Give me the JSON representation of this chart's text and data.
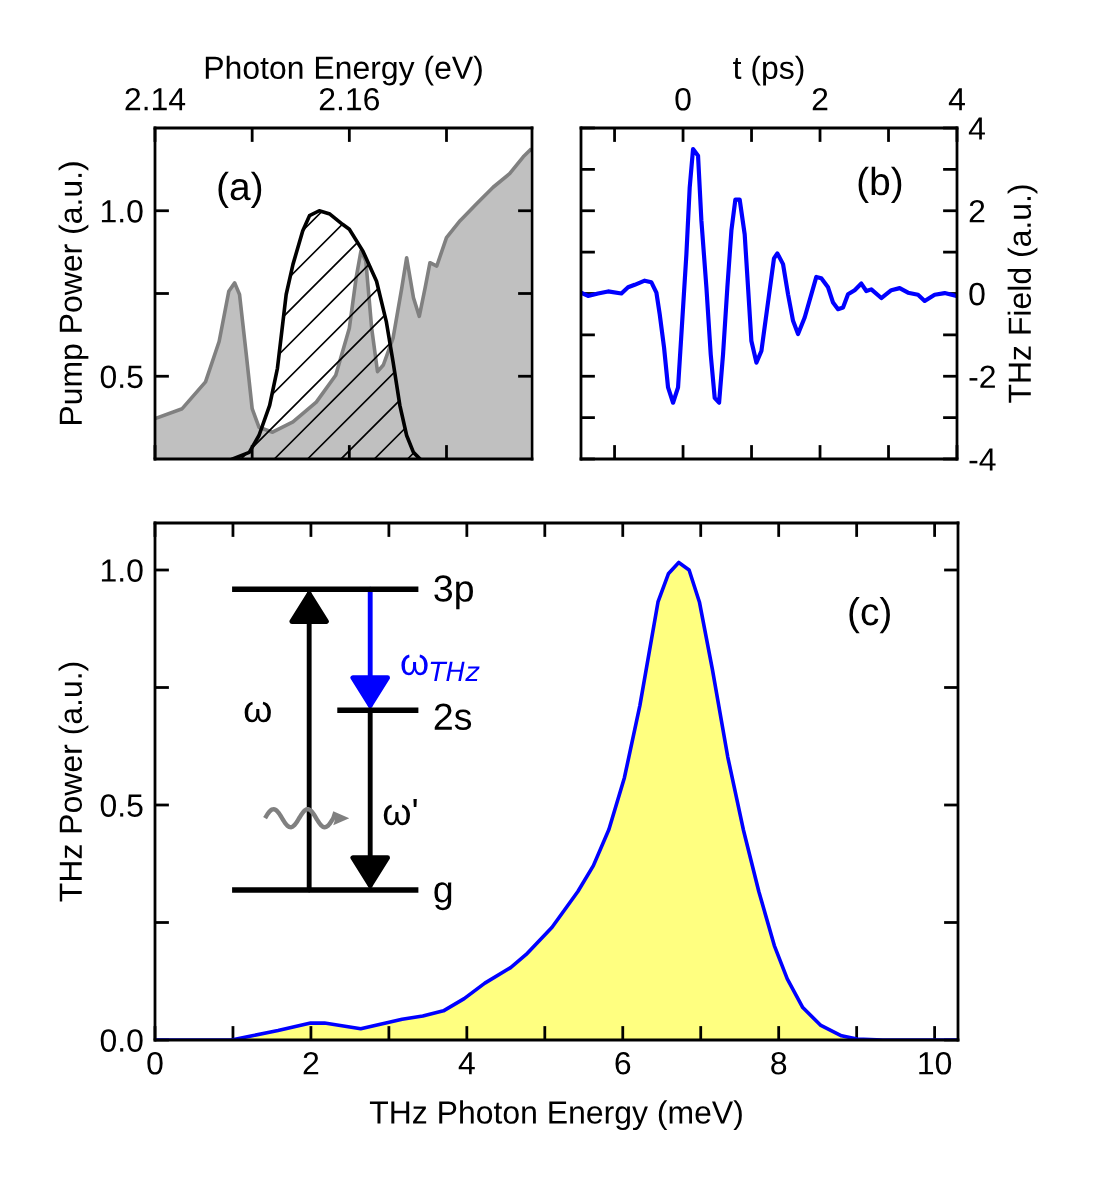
{
  "chart_data": [
    {
      "type": "area",
      "xlabel": "Photon Energy (eV)",
      "ylabel": "Pump Power (a.u.)",
      "annotations": [
        "(a)"
      ],
      "xlim": [
        2.14,
        2.1788
      ],
      "xticks": [
        2.14,
        {
          "value": 2.15,
          "label": null
        },
        2.16,
        {
          "value": 2.17,
          "label": null
        }
      ],
      "ylim": [
        0.25,
        1.25
      ],
      "yticks": [
        0.5,
        {
          "value": 0.75,
          "label": null
        },
        {
          "value": 1,
          "label": "1.0"
        }
      ],
      "colors": [
        "#808080",
        "#000000"
      ],
      "grid": false,
      "legend": false,
      "series": [
        {
          "color": "#c0c0c0",
          "x": [
            2.14,
            2.1428,
            2.1452,
            2.1466,
            2.1476,
            2.1482,
            2.1487,
            2.1494,
            2.15,
            2.1507,
            2.1521,
            2.1542,
            2.1566,
            2.1586,
            2.16,
            2.1607,
            2.1612,
            2.1617,
            2.1623,
            2.1629,
            2.1635,
            2.1645,
            2.1654,
            2.1659,
            2.1666,
            2.1672,
            2.1678,
            2.1683,
            2.169,
            2.17,
            2.1714,
            2.1731,
            2.1748,
            2.1765,
            2.1779,
            2.1786
          ],
          "values": [
            0.372,
            0.402,
            0.483,
            0.605,
            0.757,
            0.782,
            0.747,
            0.564,
            0.402,
            0.346,
            0.331,
            0.362,
            0.422,
            0.503,
            0.645,
            0.797,
            0.879,
            0.848,
            0.645,
            0.514,
            0.534,
            0.615,
            0.767,
            0.858,
            0.737,
            0.681,
            0.767,
            0.843,
            0.833,
            0.919,
            0.97,
            1.021,
            1.071,
            1.112,
            1.163,
            1.183
          ]
        },
        {
          "color": "#000000",
          "x": [
            2.148,
            2.1497,
            2.1507,
            2.1518,
            2.1526,
            2.1535,
            2.1542,
            2.1552,
            2.1559,
            2.1569,
            2.158,
            2.1593,
            2.16,
            2.1614,
            2.1628,
            2.1638,
            2.1645,
            2.1652,
            2.1659,
            2.1666,
            2.1672
          ],
          "values": [
            0.25,
            0.27,
            0.321,
            0.412,
            0.524,
            0.747,
            0.838,
            0.939,
            0.985,
            1.0,
            0.99,
            0.959,
            0.944,
            0.878,
            0.787,
            0.666,
            0.544,
            0.412,
            0.321,
            0.27,
            0.252
          ]
        }
      ]
    },
    {
      "type": "line",
      "xlabel": "t (ps)",
      "ylabel": "THz Field (a.u.)",
      "annotations": [
        "(b)"
      ],
      "xlim": [
        -1.49,
        4
      ],
      "xticks": [
        {
          "value": -1,
          "label": null
        },
        0,
        {
          "value": 1,
          "label": null
        },
        2,
        {
          "value": 3,
          "label": null
        },
        4
      ],
      "ylim": [
        -4,
        4
      ],
      "yticks": [
        -4,
        {
          "value": -3,
          "label": null
        },
        -2,
        {
          "value": -1,
          "label": null
        },
        0,
        {
          "value": 1,
          "label": null
        },
        2,
        {
          "value": 3,
          "label": null
        },
        4
      ],
      "grid": false,
      "legend": false,
      "series": [
        {
          "color": "#0000ff",
          "x": [
            -1.49,
            -1.387,
            -1.241,
            -1.095,
            -0.9,
            -0.803,
            -0.706,
            -0.56,
            -0.462,
            -0.389,
            -0.341,
            -0.277,
            -0.219,
            -0.146,
            -0.073,
            -0.024,
            0.049,
            0.097,
            0.146,
            0.219,
            0.268,
            0.341,
            0.404,
            0.462,
            0.526,
            0.584,
            0.647,
            0.706,
            0.764,
            0.827,
            0.9,
            0.949,
            0.998,
            1.071,
            1.144,
            1.217,
            1.29,
            1.328,
            1.377,
            1.46,
            1.533,
            1.606,
            1.679,
            1.776,
            1.873,
            1.946,
            2.019,
            2.117,
            2.19,
            2.263,
            2.336,
            2.409,
            2.506,
            2.603,
            2.676,
            2.749,
            2.895,
            3.041,
            3.163,
            3.285,
            3.431,
            3.528,
            3.674,
            3.82,
            3.995
          ],
          "values": [
            0.02,
            -0.06,
            0.0,
            0.05,
            0.0,
            0.15,
            0.21,
            0.31,
            0.27,
            0.02,
            -0.5,
            -1.31,
            -2.27,
            -2.64,
            -2.27,
            -0.98,
            0.95,
            2.56,
            3.49,
            3.33,
            1.76,
            0.15,
            -1.47,
            -2.52,
            -2.64,
            -1.47,
            0.15,
            1.52,
            2.27,
            2.27,
            1.43,
            0.15,
            -1.15,
            -1.67,
            -1.39,
            -0.5,
            0.39,
            0.85,
            0.97,
            0.71,
            -0.02,
            -0.66,
            -0.98,
            -0.58,
            -0.02,
            0.4,
            0.37,
            0.15,
            -0.22,
            -0.38,
            -0.34,
            -0.02,
            0.08,
            0.24,
            0.06,
            0.1,
            -0.11,
            0.08,
            0.13,
            0.02,
            -0.03,
            -0.18,
            -0.03,
            0.01,
            -0.06
          ]
        }
      ]
    },
    {
      "type": "area",
      "xlabel": "THz Photon Energy (meV)",
      "ylabel": "THz Power (a.u.)",
      "annotations": [
        "(c)",
        "3p",
        "2s",
        "g",
        "ω",
        "ω'",
        "ω$_{THz}$"
      ],
      "xlim": [
        0,
        10.3
      ],
      "xticks": [
        0,
        {
          "value": 1,
          "label": null
        },
        2,
        {
          "value": 3,
          "label": null
        },
        4,
        {
          "value": 5,
          "label": null
        },
        6,
        {
          "value": 7,
          "label": null
        },
        8,
        {
          "value": 9,
          "label": null
        },
        10
      ],
      "ylim": [
        0,
        1.1
      ],
      "yticks": [
        {
          "value": 0,
          "label": "0.0"
        },
        {
          "value": 0.25,
          "label": null
        },
        0.5,
        {
          "value": 0.75,
          "label": null
        },
        {
          "value": 1,
          "label": "1.0"
        }
      ],
      "colors": [
        "#0000ff"
      ],
      "grid": false,
      "legend": false,
      "series": [
        {
          "color": "#ffff80",
          "x": [
            0,
            0.981,
            1.247,
            1.578,
            1.996,
            2.175,
            2.639,
            3.17,
            3.435,
            3.7,
            3.966,
            4.231,
            4.562,
            4.761,
            5.093,
            5.424,
            5.623,
            5.822,
            6.021,
            6.22,
            6.452,
            6.585,
            6.718,
            6.851,
            6.983,
            7.149,
            7.347,
            7.546,
            7.745,
            7.944,
            8.11,
            8.309,
            8.541,
            8.806,
            9.005,
            9.337,
            10.298
          ],
          "values": [
            0,
            0,
            0.009,
            0.02,
            0.036,
            0.036,
            0.024,
            0.044,
            0.051,
            0.062,
            0.088,
            0.121,
            0.154,
            0.182,
            0.24,
            0.316,
            0.371,
            0.448,
            0.558,
            0.712,
            0.932,
            0.992,
            1.016,
            1.0,
            0.932,
            0.789,
            0.602,
            0.448,
            0.316,
            0.201,
            0.13,
            0.069,
            0.031,
            0.009,
            0.002,
            0,
            0
          ]
        }
      ]
    }
  ]
}
